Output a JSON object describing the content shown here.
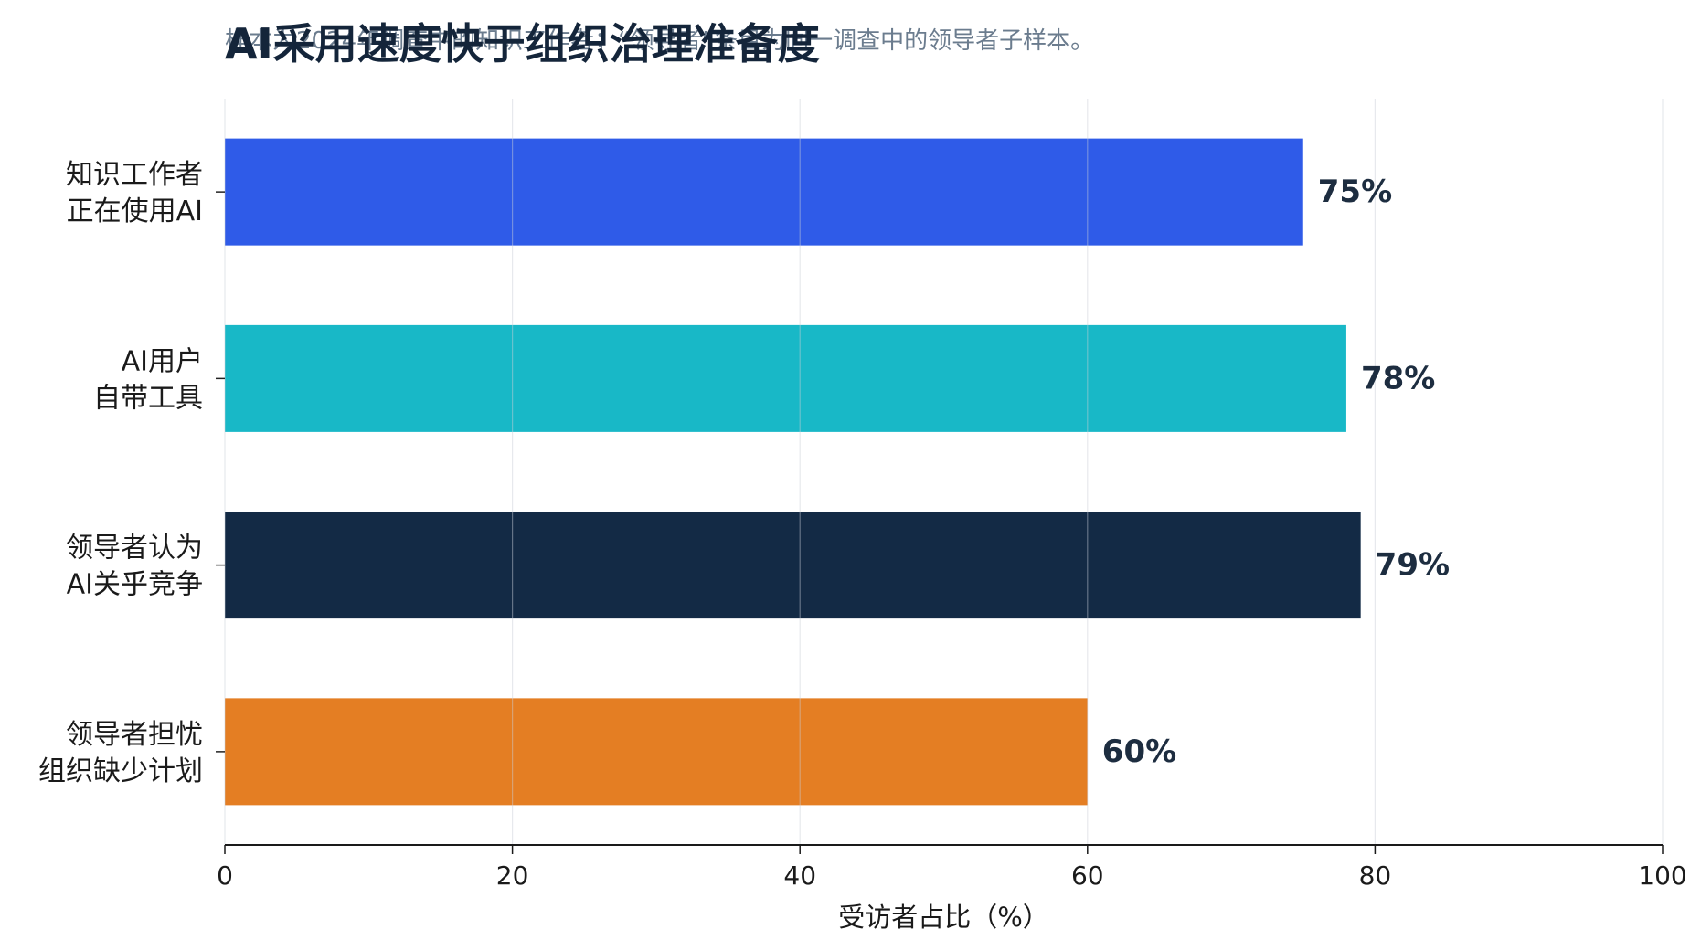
{
  "chart_data": {
    "type": "bar",
    "orientation": "horizontal",
    "title": "AI采用速度快于组织治理准备度",
    "subtitle": "样本为2024年调查中的知识工作者；“领导者”条目为同一调查中的领导者子样本。",
    "xlabel": "受访者占比（%）",
    "ylabel": "",
    "xlim": [
      0,
      100
    ],
    "xticks": [
      0,
      20,
      40,
      60,
      80,
      100
    ],
    "grid": true,
    "legend": "none",
    "value_suffix": "%",
    "categories": [
      [
        "知识工作者",
        "正在使用AI"
      ],
      [
        "AI用户",
        "自带工具"
      ],
      [
        "领导者认为",
        "AI关乎竞争"
      ],
      [
        "领导者担忧",
        "组织缺少计划"
      ]
    ],
    "values": [
      75,
      78,
      79,
      60
    ],
    "colors": [
      "#2f5be8",
      "#18b8c7",
      "#132a45",
      "#e47e23"
    ]
  }
}
